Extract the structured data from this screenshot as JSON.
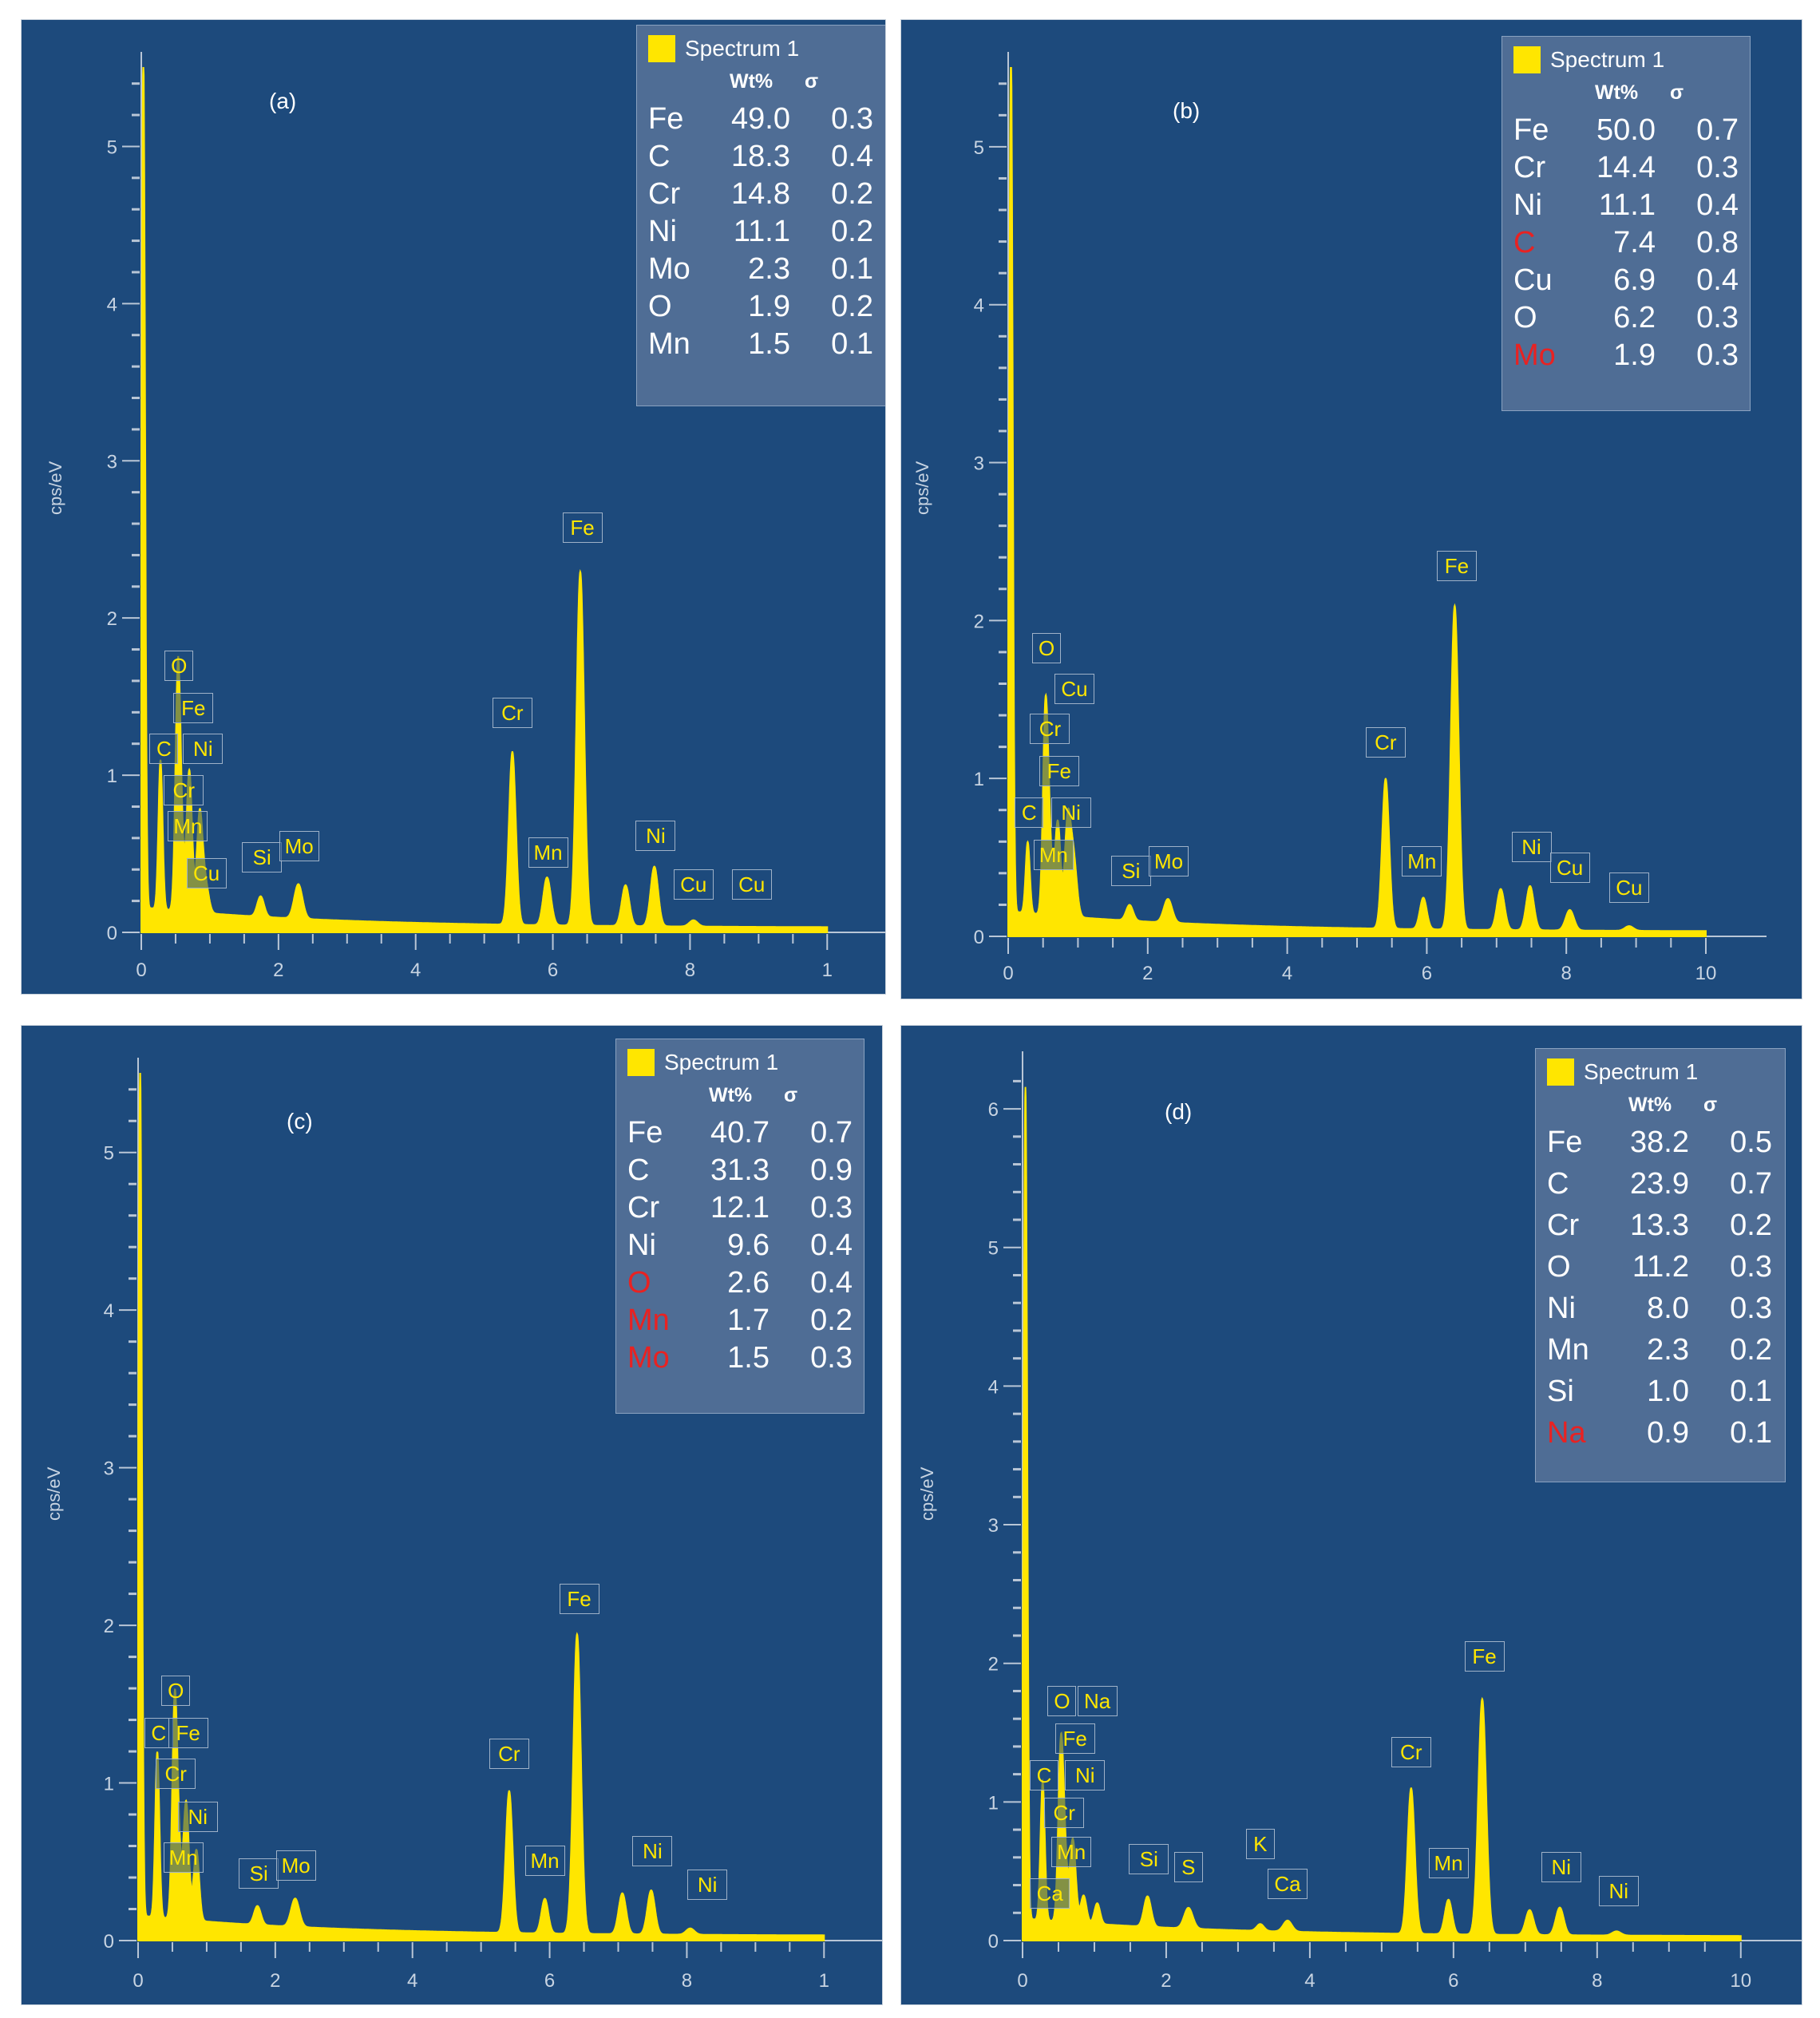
{
  "chart_data": [
    {
      "id": "a",
      "type": "line",
      "panel_label": "(a)",
      "ylabel": "cps/eV",
      "xlim": [
        0,
        10
      ],
      "ylim": [
        0,
        5.5
      ],
      "xticks": [
        "0",
        "2",
        "4",
        "6",
        "8",
        "1"
      ],
      "yticks": [
        "0",
        "1",
        "2",
        "3",
        "4",
        "5"
      ],
      "series": [
        {
          "name": "Spectrum 1",
          "color": "#ffe600"
        }
      ],
      "legend": {
        "title": "Spectrum 1",
        "col1": "Wt%",
        "col2": "σ",
        "rows": [
          {
            "el": "Fe",
            "wt": "49.0",
            "sigma": "0.3",
            "red": false
          },
          {
            "el": "C",
            "wt": "18.3",
            "sigma": "0.4",
            "red": false
          },
          {
            "el": "Cr",
            "wt": "14.8",
            "sigma": "0.2",
            "red": false
          },
          {
            "el": "Ni",
            "wt": "11.1",
            "sigma": "0.2",
            "red": false
          },
          {
            "el": "Mo",
            "wt": "2.3",
            "sigma": "0.1",
            "red": false
          },
          {
            "el": "O",
            "wt": "1.9",
            "sigma": "0.2",
            "red": false
          },
          {
            "el": "Mn",
            "wt": "1.5",
            "sigma": "0.1",
            "red": false
          }
        ]
      },
      "peaks": [
        {
          "x": 0.03,
          "h": 5.45,
          "w": 0.025
        },
        {
          "x": 0.28,
          "h": 0.95,
          "w": 0.03
        },
        {
          "x": 0.53,
          "h": 1.25,
          "w": 0.035
        },
        {
          "x": 0.57,
          "h": 0.55,
          "w": 0.04
        },
        {
          "x": 0.7,
          "h": 0.9,
          "w": 0.04
        },
        {
          "x": 0.85,
          "h": 0.6,
          "w": 0.04
        },
        {
          "x": 0.93,
          "h": 0.2,
          "w": 0.05
        },
        {
          "x": 1.74,
          "h": 0.13,
          "w": 0.05
        },
        {
          "x": 2.29,
          "h": 0.22,
          "w": 0.06
        },
        {
          "x": 5.41,
          "h": 1.1,
          "w": 0.05
        },
        {
          "x": 5.9,
          "h": 0.22,
          "w": 0.05
        },
        {
          "x": 5.95,
          "h": 0.12,
          "w": 0.05
        },
        {
          "x": 6.4,
          "h": 2.25,
          "w": 0.055
        },
        {
          "x": 7.06,
          "h": 0.26,
          "w": 0.055
        },
        {
          "x": 7.48,
          "h": 0.38,
          "w": 0.055
        },
        {
          "x": 8.05,
          "h": 0.04,
          "w": 0.06
        }
      ],
      "peak_tags": [
        {
          "label": "O",
          "x": 0.55,
          "y": 1.6
        },
        {
          "label": "Fe",
          "x": 0.76,
          "y": 1.33
        },
        {
          "label": "C",
          "x": 0.33,
          "y": 1.07
        },
        {
          "label": "Ni",
          "x": 0.9,
          "y": 1.07
        },
        {
          "label": "Cr",
          "x": 0.62,
          "y": 0.81
        },
        {
          "label": "Mn",
          "x": 0.68,
          "y": 0.58
        },
        {
          "label": "Cu",
          "x": 0.95,
          "y": 0.28
        },
        {
          "label": "Si",
          "x": 1.76,
          "y": 0.38
        },
        {
          "label": "Mo",
          "x": 2.3,
          "y": 0.45
        },
        {
          "label": "Cr",
          "x": 5.41,
          "y": 1.3
        },
        {
          "label": "Mn",
          "x": 5.93,
          "y": 0.41
        },
        {
          "label": "Fe",
          "x": 6.43,
          "y": 2.48
        },
        {
          "label": "Ni",
          "x": 7.5,
          "y": 0.52
        },
        {
          "label": "Cu",
          "x": 8.05,
          "y": 0.21
        },
        {
          "label": "Cu",
          "x": 8.9,
          "y": 0.21
        }
      ]
    },
    {
      "id": "b",
      "type": "line",
      "panel_label": "(b)",
      "ylabel": "cps/eV",
      "xlim": [
        0,
        10
      ],
      "ylim": [
        0,
        5.5
      ],
      "xticks": [
        "0",
        "2",
        "4",
        "6",
        "8",
        "10"
      ],
      "yticks": [
        "0",
        "1",
        "2",
        "3",
        "4",
        "5"
      ],
      "series": [
        {
          "name": "Spectrum 1",
          "color": "#ffe600"
        }
      ],
      "legend": {
        "title": "Spectrum 1",
        "col1": "Wt%",
        "col2": "σ",
        "rows": [
          {
            "el": "Fe",
            "wt": "50.0",
            "sigma": "0.7",
            "red": false
          },
          {
            "el": "Cr",
            "wt": "14.4",
            "sigma": "0.3",
            "red": false
          },
          {
            "el": "Ni",
            "wt": "11.1",
            "sigma": "0.4",
            "red": false
          },
          {
            "el": "C",
            "wt": "7.4",
            "sigma": "0.8",
            "red": true
          },
          {
            "el": "Cu",
            "wt": "6.9",
            "sigma": "0.4",
            "red": false
          },
          {
            "el": "O",
            "wt": "6.2",
            "sigma": "0.3",
            "red": false
          },
          {
            "el": "Mo",
            "wt": "1.9",
            "sigma": "0.3",
            "red": true
          }
        ]
      },
      "peaks": [
        {
          "x": 0.04,
          "h": 5.5,
          "w": 0.025
        },
        {
          "x": 0.28,
          "h": 0.45,
          "w": 0.03
        },
        {
          "x": 0.53,
          "h": 1.1,
          "w": 0.035
        },
        {
          "x": 0.58,
          "h": 0.55,
          "w": 0.04
        },
        {
          "x": 0.71,
          "h": 0.6,
          "w": 0.04
        },
        {
          "x": 0.85,
          "h": 0.55,
          "w": 0.04
        },
        {
          "x": 0.93,
          "h": 0.4,
          "w": 0.05
        },
        {
          "x": 1.74,
          "h": 0.1,
          "w": 0.05
        },
        {
          "x": 2.29,
          "h": 0.15,
          "w": 0.06
        },
        {
          "x": 5.41,
          "h": 0.95,
          "w": 0.05
        },
        {
          "x": 5.95,
          "h": 0.2,
          "w": 0.05
        },
        {
          "x": 6.4,
          "h": 2.05,
          "w": 0.055
        },
        {
          "x": 7.06,
          "h": 0.26,
          "w": 0.055
        },
        {
          "x": 7.48,
          "h": 0.28,
          "w": 0.055
        },
        {
          "x": 8.05,
          "h": 0.13,
          "w": 0.06
        },
        {
          "x": 8.9,
          "h": 0.03,
          "w": 0.06
        }
      ],
      "peak_tags": [
        {
          "label": "O",
          "x": 0.55,
          "y": 1.73
        },
        {
          "label": "Cu",
          "x": 0.95,
          "y": 1.47
        },
        {
          "label": "Cr",
          "x": 0.6,
          "y": 1.22
        },
        {
          "label": "Fe",
          "x": 0.73,
          "y": 0.95
        },
        {
          "label": "C",
          "x": 0.3,
          "y": 0.69
        },
        {
          "label": "Ni",
          "x": 0.9,
          "y": 0.69
        },
        {
          "label": "Mn",
          "x": 0.65,
          "y": 0.42
        },
        {
          "label": "Si",
          "x": 1.76,
          "y": 0.32
        },
        {
          "label": "Mo",
          "x": 2.3,
          "y": 0.38
        },
        {
          "label": "Cr",
          "x": 5.41,
          "y": 1.13
        },
        {
          "label": "Mn",
          "x": 5.93,
          "y": 0.38
        },
        {
          "label": "Fe",
          "x": 6.43,
          "y": 2.25
        },
        {
          "label": "Ni",
          "x": 7.5,
          "y": 0.47
        },
        {
          "label": "Cu",
          "x": 8.05,
          "y": 0.34
        },
        {
          "label": "Cu",
          "x": 8.9,
          "y": 0.21
        }
      ]
    },
    {
      "id": "c",
      "type": "line",
      "panel_label": "(c)",
      "ylabel": "cps/eV",
      "xlim": [
        0,
        10
      ],
      "ylim": [
        0,
        5.5
      ],
      "xticks": [
        "0",
        "2",
        "4",
        "6",
        "8",
        "1"
      ],
      "yticks": [
        "0",
        "1",
        "2",
        "3",
        "4",
        "5"
      ],
      "series": [
        {
          "name": "Spectrum 1",
          "color": "#ffe600"
        }
      ],
      "legend": {
        "title": "Spectrum 1",
        "col1": "Wt%",
        "col2": "σ",
        "rows": [
          {
            "el": "Fe",
            "wt": "40.7",
            "sigma": "0.7",
            "red": false
          },
          {
            "el": "C",
            "wt": "31.3",
            "sigma": "0.9",
            "red": false
          },
          {
            "el": "Cr",
            "wt": "12.1",
            "sigma": "0.3",
            "red": false
          },
          {
            "el": "Ni",
            "wt": "9.6",
            "sigma": "0.4",
            "red": false
          },
          {
            "el": "O",
            "wt": "2.6",
            "sigma": "0.4",
            "red": true
          },
          {
            "el": "Mn",
            "wt": "1.7",
            "sigma": "0.2",
            "red": true
          },
          {
            "el": "Mo",
            "wt": "1.5",
            "sigma": "0.3",
            "red": true
          }
        ]
      },
      "peaks": [
        {
          "x": 0.03,
          "h": 5.4,
          "w": 0.025
        },
        {
          "x": 0.28,
          "h": 1.05,
          "w": 0.03
        },
        {
          "x": 0.53,
          "h": 1.2,
          "w": 0.035
        },
        {
          "x": 0.58,
          "h": 0.5,
          "w": 0.04
        },
        {
          "x": 0.7,
          "h": 0.75,
          "w": 0.04
        },
        {
          "x": 0.85,
          "h": 0.45,
          "w": 0.04
        },
        {
          "x": 1.74,
          "h": 0.12,
          "w": 0.05
        },
        {
          "x": 2.29,
          "h": 0.18,
          "w": 0.06
        },
        {
          "x": 5.41,
          "h": 0.9,
          "w": 0.05
        },
        {
          "x": 5.93,
          "h": 0.22,
          "w": 0.05
        },
        {
          "x": 6.4,
          "h": 1.9,
          "w": 0.055
        },
        {
          "x": 7.06,
          "h": 0.26,
          "w": 0.055
        },
        {
          "x": 7.48,
          "h": 0.28,
          "w": 0.055
        },
        {
          "x": 8.05,
          "h": 0.04,
          "w": 0.06
        }
      ],
      "peak_tags": [
        {
          "label": "O",
          "x": 0.55,
          "y": 1.49
        },
        {
          "label": "C",
          "x": 0.3,
          "y": 1.22
        },
        {
          "label": "Fe",
          "x": 0.73,
          "y": 1.22
        },
        {
          "label": "Cr",
          "x": 0.55,
          "y": 0.96
        },
        {
          "label": "Ni",
          "x": 0.87,
          "y": 0.69
        },
        {
          "label": "Mn",
          "x": 0.66,
          "y": 0.43
        },
        {
          "label": "Si",
          "x": 1.76,
          "y": 0.33
        },
        {
          "label": "Mo",
          "x": 2.3,
          "y": 0.38
        },
        {
          "label": "Cr",
          "x": 5.41,
          "y": 1.09
        },
        {
          "label": "Mn",
          "x": 5.93,
          "y": 0.41
        },
        {
          "label": "Fe",
          "x": 6.43,
          "y": 2.07
        },
        {
          "label": "Ni",
          "x": 7.5,
          "y": 0.47
        },
        {
          "label": "Ni",
          "x": 8.3,
          "y": 0.26
        }
      ]
    },
    {
      "id": "d",
      "type": "line",
      "panel_label": "(d)",
      "ylabel": "cps/eV",
      "xlim": [
        0,
        10
      ],
      "ylim": [
        0,
        6.3
      ],
      "xticks": [
        "0",
        "2",
        "4",
        "6",
        "8",
        "10"
      ],
      "yticks": [
        "0",
        "1",
        "2",
        "3",
        "4",
        "5",
        "6"
      ],
      "series": [
        {
          "name": "Spectrum 1",
          "color": "#ffe600"
        }
      ],
      "legend": {
        "title": "Spectrum 1",
        "col1": "Wt%",
        "col2": "σ",
        "rows": [
          {
            "el": "Fe",
            "wt": "38.2",
            "sigma": "0.5",
            "red": false
          },
          {
            "el": "C",
            "wt": "23.9",
            "sigma": "0.7",
            "red": false
          },
          {
            "el": "Cr",
            "wt": "13.3",
            "sigma": "0.2",
            "red": false
          },
          {
            "el": "O",
            "wt": "11.2",
            "sigma": "0.3",
            "red": false
          },
          {
            "el": "Ni",
            "wt": "8.0",
            "sigma": "0.3",
            "red": false
          },
          {
            "el": "Mn",
            "wt": "2.3",
            "sigma": "0.2",
            "red": false
          },
          {
            "el": "Si",
            "wt": "1.0",
            "sigma": "0.1",
            "red": false
          },
          {
            "el": "Na",
            "wt": "0.9",
            "sigma": "0.1",
            "red": true
          }
        ]
      },
      "peaks": [
        {
          "x": 0.04,
          "h": 6.0,
          "w": 0.025
        },
        {
          "x": 0.28,
          "h": 1.0,
          "w": 0.03
        },
        {
          "x": 0.53,
          "h": 1.1,
          "w": 0.035
        },
        {
          "x": 0.58,
          "h": 0.5,
          "w": 0.04
        },
        {
          "x": 0.7,
          "h": 0.6,
          "w": 0.04
        },
        {
          "x": 0.85,
          "h": 0.2,
          "w": 0.04
        },
        {
          "x": 1.04,
          "h": 0.15,
          "w": 0.04
        },
        {
          "x": 1.74,
          "h": 0.22,
          "w": 0.05
        },
        {
          "x": 2.31,
          "h": 0.15,
          "w": 0.06
        },
        {
          "x": 3.31,
          "h": 0.05,
          "w": 0.05
        },
        {
          "x": 3.69,
          "h": 0.08,
          "w": 0.06
        },
        {
          "x": 5.41,
          "h": 1.05,
          "w": 0.05
        },
        {
          "x": 5.93,
          "h": 0.25,
          "w": 0.05
        },
        {
          "x": 6.4,
          "h": 1.7,
          "w": 0.055
        },
        {
          "x": 7.06,
          "h": 0.18,
          "w": 0.055
        },
        {
          "x": 7.48,
          "h": 0.2,
          "w": 0.055
        },
        {
          "x": 8.27,
          "h": 0.03,
          "w": 0.06
        }
      ],
      "peak_tags": [
        {
          "label": "O",
          "x": 0.55,
          "y": 1.62
        },
        {
          "label": "Na",
          "x": 1.04,
          "y": 1.62
        },
        {
          "label": "Fe",
          "x": 0.73,
          "y": 1.35
        },
        {
          "label": "C",
          "x": 0.3,
          "y": 1.08
        },
        {
          "label": "Ni",
          "x": 0.87,
          "y": 1.08
        },
        {
          "label": "Cr",
          "x": 0.58,
          "y": 0.81
        },
        {
          "label": "Mn",
          "x": 0.68,
          "y": 0.53
        },
        {
          "label": "Ca",
          "x": 0.38,
          "y": 0.23
        },
        {
          "label": "Si",
          "x": 1.76,
          "y": 0.48
        },
        {
          "label": "S",
          "x": 2.31,
          "y": 0.42
        },
        {
          "label": "K",
          "x": 3.31,
          "y": 0.59
        },
        {
          "label": "Ca",
          "x": 3.69,
          "y": 0.3
        },
        {
          "label": "Cr",
          "x": 5.41,
          "y": 1.25
        },
        {
          "label": "Mn",
          "x": 5.93,
          "y": 0.45
        },
        {
          "label": "Fe",
          "x": 6.43,
          "y": 1.94
        },
        {
          "label": "Ni",
          "x": 7.5,
          "y": 0.42
        },
        {
          "label": "Ni",
          "x": 8.3,
          "y": 0.25
        }
      ]
    }
  ]
}
